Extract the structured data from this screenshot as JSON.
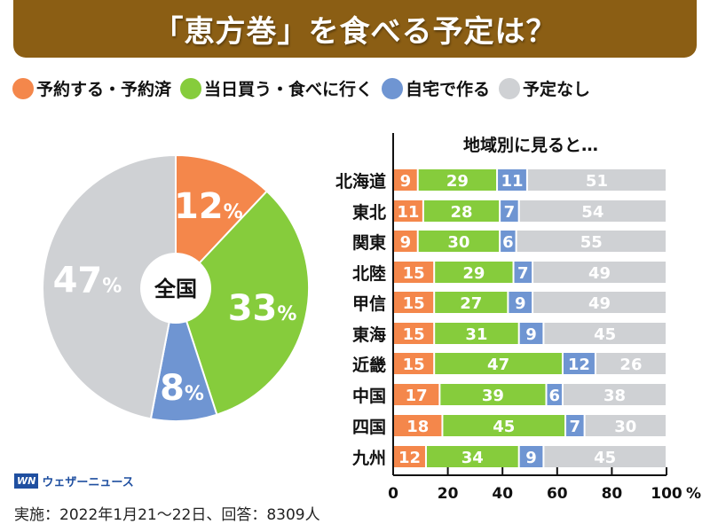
{
  "header": {
    "title": "「恵方巻」を食べる予定は？"
  },
  "legend": [
    {
      "label": "予約する・予約済",
      "color": "#f4874b"
    },
    {
      "label": "当日買う・食べに行く",
      "color": "#86cc3c"
    },
    {
      "label": "自宅で作る",
      "color": "#6f95d2"
    },
    {
      "label": "予定なし",
      "color": "#cfd1d4"
    }
  ],
  "chart_data": [
    {
      "type": "pie",
      "center_label": "全国",
      "unit": "%",
      "slices": [
        {
          "category": "予約する・予約済",
          "value": 12
        },
        {
          "category": "当日買う・食べに行く",
          "value": 33
        },
        {
          "category": "自宅で作る",
          "value": 8
        },
        {
          "category": "予定なし",
          "value": 47
        }
      ]
    },
    {
      "type": "bar",
      "orientation": "horizontal",
      "stacked": true,
      "title": "地域別に見ると…",
      "categories": [
        "北海道",
        "東北",
        "関東",
        "北陸",
        "甲信",
        "東海",
        "近畿",
        "中国",
        "四国",
        "九州"
      ],
      "series": [
        {
          "name": "予約する・予約済",
          "values": [
            9,
            11,
            9,
            15,
            15,
            15,
            15,
            17,
            18,
            12
          ]
        },
        {
          "name": "当日買う・食べに行く",
          "values": [
            29,
            28,
            30,
            29,
            27,
            31,
            47,
            39,
            45,
            34
          ]
        },
        {
          "name": "自宅で作る",
          "values": [
            11,
            7,
            6,
            7,
            9,
            9,
            12,
            6,
            7,
            9
          ]
        },
        {
          "name": "予定なし",
          "values": [
            51,
            54,
            55,
            49,
            49,
            45,
            26,
            38,
            30,
            45
          ]
        }
      ],
      "xlim": [
        0,
        100
      ],
      "xticks": [
        "0",
        "20",
        "40",
        "60",
        "80",
        "100"
      ],
      "xunit": "%",
      "grid": false
    }
  ],
  "footer": {
    "logo_text": "ウェザーニュース",
    "logo_mark": "WN",
    "note": "実施：2022年1月21〜22日、回答：8309人"
  }
}
